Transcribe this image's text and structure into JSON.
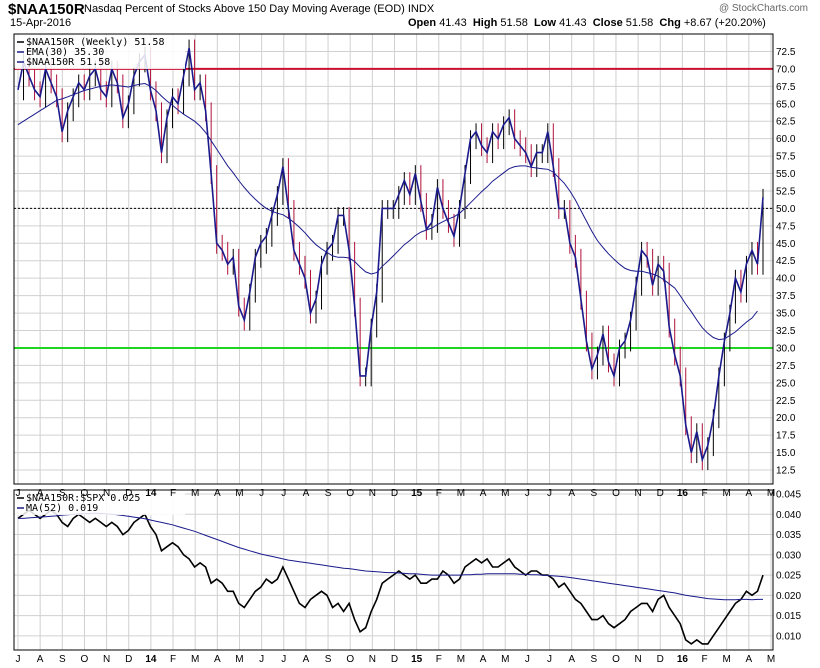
{
  "header": {
    "symbol": "$NAA150R",
    "title": "Nasdaq Percent of Stocks Above 150 Day Moving Average (EOD)",
    "exchange": "INDX",
    "date": "15-Apr-2016",
    "open_label": "Open",
    "open": "41.43",
    "high_label": "High",
    "high": "51.58",
    "low_label": "Low",
    "low": "41.43",
    "close_label": "Close",
    "close": "51.58",
    "chg_label": "Chg",
    "chg": "+8.67 (+20.20%)",
    "watermark": "@ StockCharts.com"
  },
  "chart_data": [
    {
      "type": "line",
      "panel": "main",
      "legend": [
        {
          "text": "$NAA150R (Weekly) 51.58",
          "color": "#000000"
        },
        {
          "text": "EMA(30) 35.30",
          "color": "#1a1a8c"
        },
        {
          "text": "$NAA150R 51.58",
          "color": "#1a1a8c"
        }
      ],
      "ylim": [
        10.5,
        75
      ],
      "yticks": [
        "72.5",
        "70.0",
        "67.5",
        "65.0",
        "62.5",
        "60.0",
        "57.5",
        "55.0",
        "52.5",
        "50.0",
        "47.5",
        "45.0",
        "42.5",
        "40.0",
        "37.5",
        "35.0",
        "32.5",
        "30.0",
        "27.5",
        "25.0",
        "22.5",
        "20.0",
        "17.5",
        "15.0",
        "12.5"
      ],
      "hlines": [
        {
          "value": 70,
          "color": "#c8102e",
          "style": "solid"
        },
        {
          "value": 30,
          "color": "#22d322",
          "style": "solid"
        },
        {
          "value": 50,
          "color": "#000000",
          "style": "dotted"
        }
      ],
      "x_labels": [
        "J",
        "A",
        "S",
        "O",
        "N",
        "D",
        "14",
        "F",
        "M",
        "A",
        "M",
        "J",
        "J",
        "A",
        "S",
        "O",
        "N",
        "D",
        "15",
        "F",
        "M",
        "A",
        "M",
        "J",
        "J",
        "A",
        "S",
        "O",
        "N",
        "D",
        "16",
        "F",
        "M",
        "A",
        "M"
      ],
      "bold_x_labels": [
        "14",
        "15",
        "16"
      ],
      "series": [
        {
          "name": "$NAA150R",
          "color": "#1a1a8c",
          "values": [
            67,
            71,
            69,
            67,
            66,
            70,
            68,
            66,
            61,
            64,
            66,
            68,
            67,
            69,
            70,
            67,
            66,
            70,
            68,
            63,
            65,
            69,
            71,
            72,
            67,
            64,
            58,
            63,
            66,
            65,
            69,
            73,
            67,
            68,
            64,
            55,
            45,
            44,
            42,
            43,
            36,
            34,
            38,
            43,
            45,
            46,
            49,
            52,
            56,
            50,
            44,
            42,
            40,
            35,
            37,
            42,
            44,
            45,
            49,
            49,
            44,
            36,
            26,
            26,
            33,
            38,
            50,
            50,
            50,
            52,
            54,
            52,
            55,
            51,
            47,
            48,
            53,
            50,
            48,
            46,
            50,
            55,
            60,
            61,
            59,
            58,
            61,
            60,
            62,
            63,
            60,
            59,
            58,
            56,
            58,
            58,
            61,
            56,
            50,
            50,
            45,
            43,
            37,
            31,
            27,
            29,
            32,
            28,
            26,
            30,
            31,
            34,
            39,
            44,
            43,
            39,
            42,
            41,
            33,
            29,
            26,
            19,
            15,
            18,
            14,
            16,
            20,
            26,
            31,
            35,
            40,
            38,
            42,
            44,
            42,
            51.6
          ]
        },
        {
          "name": "EMA(30)",
          "color": "#1a1a8c",
          "values": [
            62,
            62.5,
            63,
            63.5,
            64,
            64.5,
            65,
            65.5,
            65.7,
            66,
            66.3,
            66.6,
            66.9,
            67.1,
            67.3,
            67.5,
            67.6,
            67.7,
            67.6,
            67.5,
            67.4,
            67.6,
            67.8,
            67.9,
            67.5,
            66.9,
            66.1,
            65.4,
            64.8,
            64.1,
            63.5,
            63,
            62.5,
            61.8,
            60.9,
            59.7,
            58.5,
            57.3,
            56.1,
            55.1,
            54,
            53,
            52.1,
            51.3,
            50.6,
            50,
            49.6,
            49.3,
            49.1,
            48.6,
            48,
            47.3,
            46.5,
            45.6,
            44.8,
            44.2,
            43.7,
            43.2,
            43,
            43,
            42.9,
            42.4,
            41.6,
            40.9,
            40.6,
            40.8,
            41.7,
            42.4,
            43.2,
            44,
            44.8,
            45.4,
            46.1,
            46.6,
            46.9,
            47.2,
            47.7,
            48.1,
            48.5,
            48.8,
            49.3,
            50,
            50.8,
            51.6,
            52.4,
            53.1,
            53.9,
            54.5,
            55.1,
            55.7,
            56,
            56.1,
            56.1,
            55.9,
            55.8,
            55.7,
            55.6,
            55.2,
            54.4,
            53.6,
            52.5,
            51.2,
            49.7,
            48.2,
            46.7,
            45.4,
            44.4,
            43.5,
            42.7,
            42,
            41.4,
            41.1,
            41,
            41,
            40.8,
            40.6,
            40.3,
            39.8,
            39.2,
            38.6,
            37.5,
            36.3,
            35.2,
            34,
            32.9,
            32.1,
            31.5,
            31.2,
            31.3,
            31.8,
            32.3,
            33,
            33.7,
            34.3,
            35.3
          ]
        }
      ]
    },
    {
      "type": "line",
      "panel": "ratio",
      "legend": [
        {
          "text": "$NAA150R:$SPX 0.025",
          "color": "#000000"
        },
        {
          "text": "MA(52) 0.019",
          "color": "#1a1a8c"
        }
      ],
      "ylim": [
        0.0065,
        0.046
      ],
      "yticks": [
        "0.045",
        "0.040",
        "0.035",
        "0.030",
        "0.025",
        "0.020",
        "0.015",
        "0.010"
      ],
      "x_labels": [
        "J",
        "A",
        "S",
        "O",
        "N",
        "D",
        "14",
        "F",
        "M",
        "A",
        "M",
        "J",
        "J",
        "A",
        "S",
        "O",
        "N",
        "D",
        "15",
        "F",
        "M",
        "A",
        "M",
        "J",
        "J",
        "A",
        "S",
        "O",
        "N",
        "D",
        "16",
        "F",
        "M",
        "A",
        "M"
      ],
      "bold_x_labels": [
        "14",
        "15",
        "16"
      ],
      "series": [
        {
          "name": "$NAA150R:$SPX",
          "color": "#000000",
          "values": [
            0.039,
            0.04,
            0.041,
            0.04,
            0.039,
            0.04,
            0.041,
            0.04,
            0.038,
            0.037,
            0.039,
            0.04,
            0.039,
            0.038,
            0.039,
            0.038,
            0.037,
            0.038,
            0.037,
            0.035,
            0.036,
            0.038,
            0.039,
            0.04,
            0.037,
            0.035,
            0.031,
            0.032,
            0.033,
            0.032,
            0.03,
            0.029,
            0.027,
            0.028,
            0.027,
            0.023,
            0.024,
            0.023,
            0.021,
            0.021,
            0.018,
            0.017,
            0.019,
            0.021,
            0.022,
            0.024,
            0.023,
            0.024,
            0.027,
            0.024,
            0.021,
            0.018,
            0.017,
            0.019,
            0.02,
            0.021,
            0.02,
            0.017,
            0.018,
            0.016,
            0.018,
            0.014,
            0.011,
            0.012,
            0.016,
            0.019,
            0.023,
            0.024,
            0.025,
            0.026,
            0.025,
            0.024,
            0.025,
            0.023,
            0.023,
            0.024,
            0.024,
            0.026,
            0.025,
            0.023,
            0.024,
            0.027,
            0.028,
            0.029,
            0.028,
            0.029,
            0.027,
            0.027,
            0.028,
            0.029,
            0.027,
            0.026,
            0.025,
            0.026,
            0.026,
            0.025,
            0.025,
            0.024,
            0.022,
            0.023,
            0.021,
            0.019,
            0.018,
            0.016,
            0.014,
            0.014,
            0.015,
            0.013,
            0.012,
            0.013,
            0.014,
            0.016,
            0.017,
            0.018,
            0.018,
            0.016,
            0.019,
            0.02,
            0.017,
            0.015,
            0.013,
            0.009,
            0.008,
            0.009,
            0.008,
            0.008,
            0.01,
            0.012,
            0.014,
            0.016,
            0.018,
            0.019,
            0.021,
            0.02,
            0.021,
            0.025
          ]
        },
        {
          "name": "MA(52)",
          "color": "#1a1a8c",
          "values": [
            0.039,
            0.039,
            0.0391,
            0.0392,
            0.0393,
            0.0394,
            0.0395,
            0.0396,
            0.0398,
            0.0399,
            0.04,
            0.0401,
            0.0402,
            0.0402,
            0.0403,
            0.0402,
            0.0401,
            0.04,
            0.0399,
            0.0397,
            0.0395,
            0.0393,
            0.0391,
            0.0389,
            0.0386,
            0.0383,
            0.038,
            0.0377,
            0.0374,
            0.037,
            0.0366,
            0.0362,
            0.0358,
            0.0353,
            0.0348,
            0.0343,
            0.0338,
            0.0333,
            0.0328,
            0.0323,
            0.0318,
            0.0314,
            0.031,
            0.0306,
            0.0302,
            0.0299,
            0.0296,
            0.0293,
            0.029,
            0.0287,
            0.0285,
            0.0283,
            0.0281,
            0.0279,
            0.0277,
            0.0275,
            0.0273,
            0.0271,
            0.0269,
            0.0267,
            0.0266,
            0.0264,
            0.0262,
            0.026,
            0.0259,
            0.0258,
            0.0257,
            0.0256,
            0.0256,
            0.0255,
            0.0254,
            0.0253,
            0.0253,
            0.0252,
            0.0251,
            0.025,
            0.025,
            0.025,
            0.025,
            0.025,
            0.025,
            0.0251,
            0.0251,
            0.0252,
            0.0252,
            0.0253,
            0.0253,
            0.0253,
            0.0253,
            0.0253,
            0.0253,
            0.0252,
            0.0252,
            0.0251,
            0.0251,
            0.025,
            0.0249,
            0.0248,
            0.0247,
            0.0246,
            0.0244,
            0.0242,
            0.024,
            0.0238,
            0.0236,
            0.0234,
            0.0232,
            0.023,
            0.0228,
            0.0226,
            0.0224,
            0.0222,
            0.022,
            0.0218,
            0.0216,
            0.0214,
            0.0212,
            0.021,
            0.0208,
            0.0206,
            0.0203,
            0.02,
            0.0198,
            0.0196,
            0.0194,
            0.0192,
            0.0191,
            0.019,
            0.0189,
            0.0189,
            0.0189,
            0.019,
            0.019,
            0.0189,
            0.019,
            0.019
          ]
        }
      ]
    }
  ]
}
